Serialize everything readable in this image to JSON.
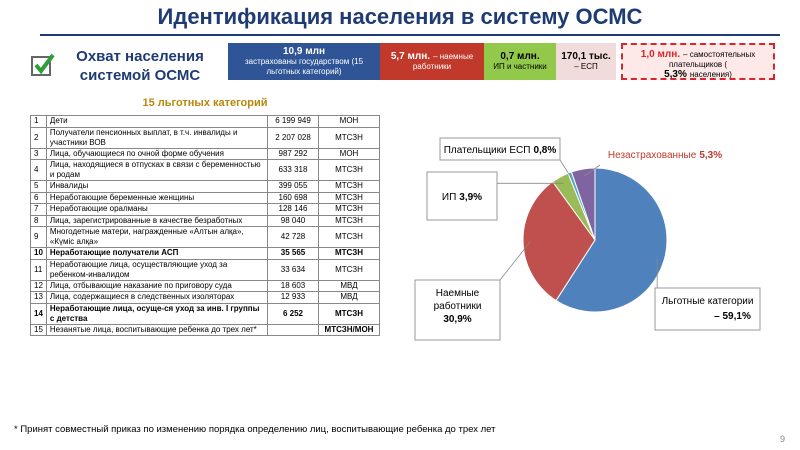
{
  "header": {
    "title": "Идентификация населения в систему ОСМС",
    "coverage_title": "Охват населения системой ОСМС"
  },
  "coverage": [
    {
      "value": "10,9 млн",
      "text": "застрахованы государством (15 льготных категорий)"
    },
    {
      "value": "5,7 млн.",
      "text": "– наемные работники"
    },
    {
      "value": "0,7 млн.",
      "text": "ИП и частники"
    },
    {
      "value": "170,1 тыс.",
      "text": "– ЕСП"
    },
    {
      "value": "1,0 млн.",
      "text": "– самостоятельных плательщиков (",
      "share": "5,3%",
      "tail": "населения)"
    }
  ],
  "table": {
    "title": "15 льготных категорий",
    "rows": [
      [
        "1",
        "Дети",
        "6 199 949",
        "МОН"
      ],
      [
        "2",
        "Получатели пенсионных выплат, в т.ч. инвалиды и участники ВОВ",
        "2 207 028",
        "МТСЗН"
      ],
      [
        "3",
        "Лица, обучающиеся по очной форме обучения",
        "987 292",
        "МОН"
      ],
      [
        "4",
        "Лица, находящиеся в отпусках в связи с беременностью и родам",
        "633 318",
        "МТСЗН"
      ],
      [
        "5",
        "Инвалиды",
        "399 055",
        "МТСЗН"
      ],
      [
        "6",
        "Неработающие беременные женщины",
        "160 698",
        "МТСЗН"
      ],
      [
        "7",
        "Неработающие оралманы",
        "128 146",
        "МТСЗН"
      ],
      [
        "8",
        "Лица, зарегистрированные в качестве безработных",
        "98 040",
        "МТСЗН"
      ],
      [
        "9",
        "Многодетные матери, награжденные «Алтын алқа», «Күміс алқа»",
        "42 728",
        "МТСЗН"
      ],
      [
        "10",
        "Неработающие получатели АСП",
        "35 565",
        "МТСЗН"
      ],
      [
        "11",
        "Неработающие лица, осуществляющие уход за ребенком-инвалидом",
        "33 634",
        "МТСЗН"
      ],
      [
        "12",
        "Лица, отбывающие наказание по приговору суда",
        "18 603",
        "МВД"
      ],
      [
        "13",
        "Лица, содержащиеся в следственных изоляторах",
        "12 933",
        "МВД"
      ],
      [
        "14",
        "Неработающие лица, осуще-ся уход за инв. I группы с детства",
        "6 252",
        "МТСЗН"
      ],
      [
        "15",
        "Незанятые лица, воспитывающие ребенка до трех лет*",
        "",
        "МТСЗН/МОН"
      ]
    ]
  },
  "chart_data": {
    "type": "pie",
    "categories": [
      "Льготные категории",
      "Наемные работники",
      "ИП",
      "Плательщики ЕСП",
      "Незастрахованные"
    ],
    "values": [
      59.1,
      30.9,
      3.9,
      0.8,
      5.3
    ],
    "value_labels": [
      "– 59,1%",
      "30,9%",
      "3,9%",
      "0,8%",
      "5,3%"
    ],
    "colors": [
      "#4f81bd",
      "#c0504d",
      "#9bbb59",
      "#4bacc6",
      "#8064a2"
    ]
  },
  "footnote": "* Принят совместный приказ по изменению порядка определению лиц, воспитывающие ребенка до трех лет",
  "page_number": "9"
}
